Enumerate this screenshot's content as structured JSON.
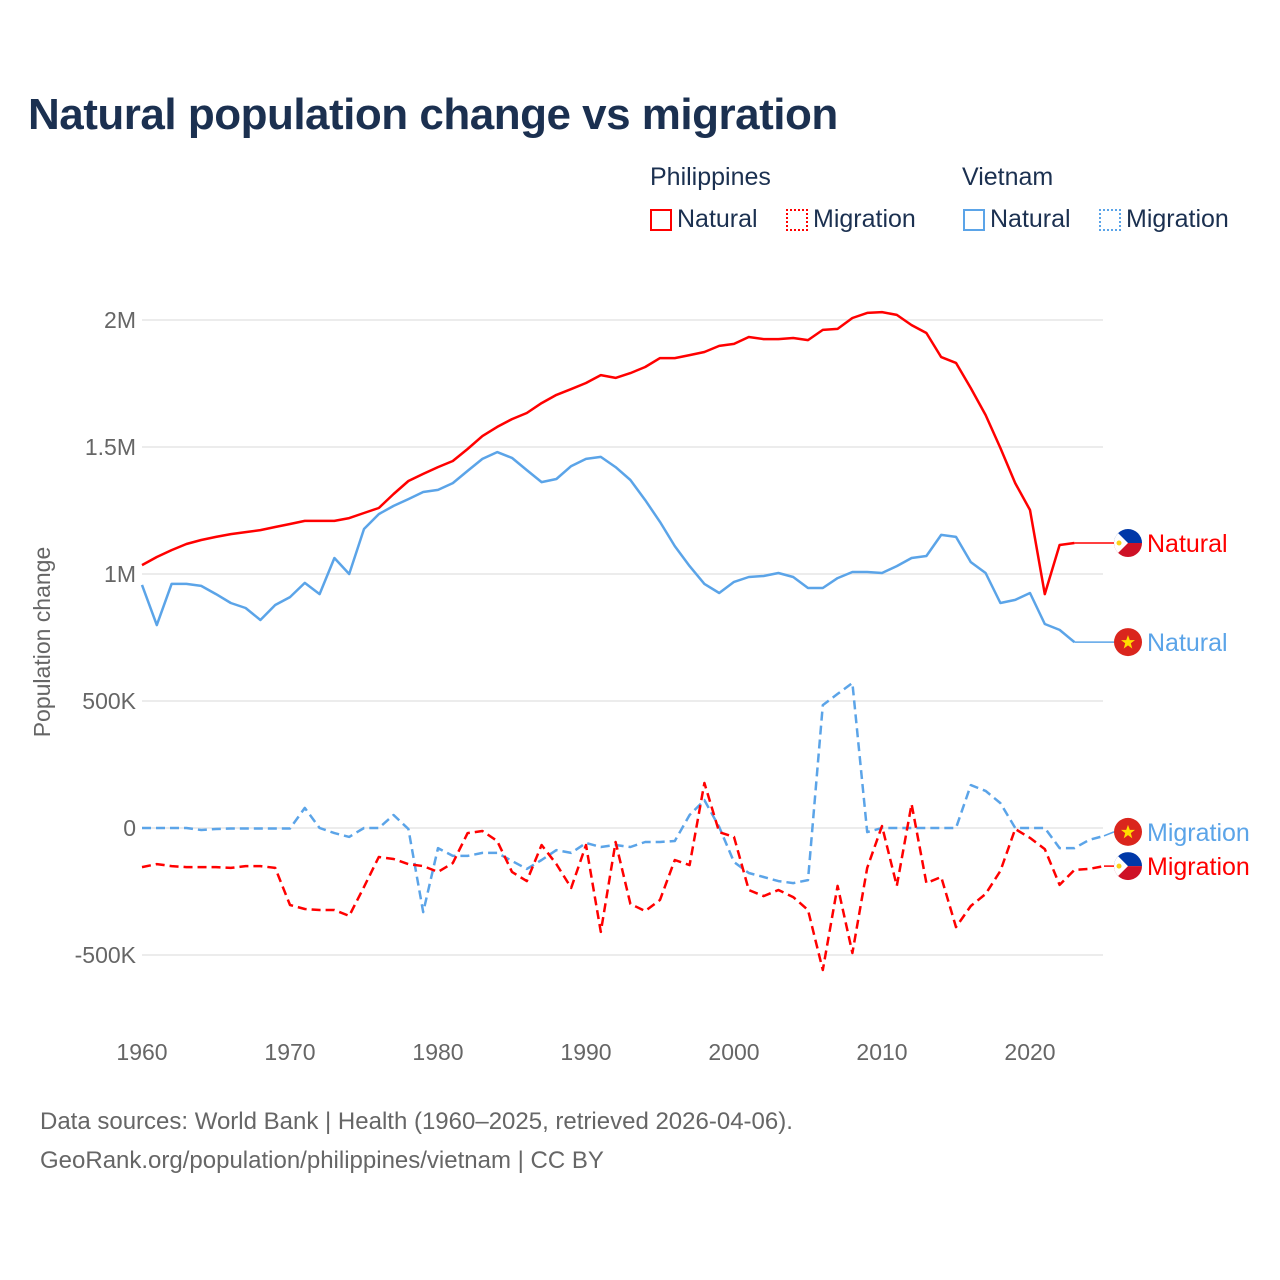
{
  "title": "Natural population change vs migration",
  "legend": {
    "groups": [
      {
        "name": "Philippines",
        "items": [
          {
            "label": "Natural",
            "style": "solid",
            "color": "#ff0000"
          },
          {
            "label": "Migration",
            "style": "dotted",
            "color": "#ff0000"
          }
        ]
      },
      {
        "name": "Vietnam",
        "items": [
          {
            "label": "Natural",
            "style": "solid",
            "color": "#5ba4e8"
          },
          {
            "label": "Migration",
            "style": "dotted",
            "color": "#5ba4e8"
          }
        ]
      }
    ]
  },
  "footer": {
    "line1": "Data sources: World Bank | Health (1960–2025, retrieved 2026-04-06).",
    "line2": "GeoRank.org/population/philippines/vietnam | CC BY"
  },
  "chart_data": {
    "type": "line",
    "title": "Natural population change vs migration",
    "xlabel": "",
    "ylabel": "Population change",
    "xlim": [
      1960,
      2025
    ],
    "ylim": [
      -650000,
      2100000
    ],
    "x_ticks": [
      1960,
      1970,
      1980,
      1990,
      2000,
      2010,
      2020
    ],
    "x_tick_labels": [
      "1960",
      "1970",
      "1980",
      "1990",
      "2000",
      "2010",
      "2020"
    ],
    "y_ticks": [
      -500000,
      0,
      500000,
      1000000,
      1500000,
      2000000
    ],
    "y_tick_labels": [
      "-500K",
      "0",
      "500K",
      "1M",
      "1.5M",
      "2M"
    ],
    "grid": true,
    "x_start": 1960,
    "series": [
      {
        "name": "Philippines Natural",
        "end_label": "Natural",
        "flag": "philippines-flag",
        "color": "#ff0000",
        "dash": false,
        "values": [
          1035000,
          1067000,
          1094000,
          1118000,
          1134000,
          1146000,
          1157000,
          1165000,
          1173000,
          1185000,
          1197000,
          1209000,
          1209000,
          1209000,
          1220000,
          1240000,
          1260000,
          1315000,
          1366000,
          1394000,
          1421000,
          1445000,
          1492000,
          1543000,
          1579000,
          1610000,
          1634000,
          1673000,
          1705000,
          1728000,
          1752000,
          1783000,
          1772000,
          1791000,
          1815000,
          1850000,
          1850000,
          1862000,
          1874000,
          1898000,
          1906000,
          1933000,
          1925000,
          1925000,
          1929000,
          1921000,
          1961000,
          1965000,
          2008000,
          2028000,
          2031000,
          2020000,
          1980000,
          1949000,
          1854000,
          1831000,
          1732000,
          1626000,
          1496000,
          1358000,
          1252000,
          921000,
          1114000,
          1122000
        ]
      },
      {
        "name": "Vietnam Natural",
        "end_label": "Natural",
        "flag": "vietnam-flag",
        "color": "#5ba4e8",
        "dash": false,
        "values": [
          957000,
          799000,
          961000,
          961000,
          953000,
          921000,
          886000,
          866000,
          819000,
          878000,
          909000,
          965000,
          921000,
          1063000,
          1000000,
          1177000,
          1236000,
          1268000,
          1295000,
          1323000,
          1331000,
          1358000,
          1406000,
          1453000,
          1480000,
          1457000,
          1409000,
          1362000,
          1374000,
          1425000,
          1453000,
          1461000,
          1421000,
          1370000,
          1291000,
          1205000,
          1110000,
          1031000,
          961000,
          925000,
          969000,
          988000,
          992000,
          1004000,
          988000,
          945000,
          945000,
          984000,
          1008000,
          1008000,
          1004000,
          1031000,
          1063000,
          1071000,
          1154000,
          1146000,
          1047000,
          1004000,
          886000,
          898000,
          925000,
          803000,
          780000,
          732000
        ]
      },
      {
        "name": "Vietnam Migration",
        "end_label": "Migration",
        "flag": "vietnam-flag",
        "color": "#5ba4e8",
        "dash": true,
        "values": [
          0,
          0,
          0,
          0,
          -8000,
          -4000,
          -2000,
          -2000,
          -2000,
          -2000,
          -2000,
          79000,
          0,
          -20000,
          -35000,
          0,
          0,
          51000,
          -4000,
          -331000,
          -79000,
          -110000,
          -110000,
          -98000,
          -98000,
          -130000,
          -161000,
          -126000,
          -87000,
          -98000,
          -59000,
          -75000,
          -67000,
          -75000,
          -55000,
          -55000,
          -51000,
          51000,
          110000,
          4000,
          -134000,
          -177000,
          -193000,
          -209000,
          -217000,
          -205000,
          484000,
          528000,
          571000,
          -16000,
          0,
          0,
          0,
          0,
          0,
          0,
          169000,
          146000,
          98000,
          0,
          0,
          0,
          -79000,
          -79000,
          -47000,
          -31000
        ]
      },
      {
        "name": "Philippines Migration",
        "end_label": "Migration",
        "flag": "philippines-flag",
        "color": "#ff0000",
        "dash": true,
        "values": [
          -154000,
          -142000,
          -150000,
          -154000,
          -154000,
          -154000,
          -157000,
          -150000,
          -150000,
          -157000,
          -303000,
          -319000,
          -323000,
          -323000,
          -346000,
          -232000,
          -114000,
          -122000,
          -142000,
          -150000,
          -173000,
          -138000,
          -20000,
          -12000,
          -51000,
          -173000,
          -209000,
          -67000,
          -142000,
          -236000,
          -67000,
          -409000,
          -55000,
          -299000,
          -327000,
          -283000,
          -126000,
          -146000,
          177000,
          -16000,
          -35000,
          -244000,
          -268000,
          -244000,
          -272000,
          -323000,
          -559000,
          -228000,
          -492000,
          -157000,
          8000,
          -228000,
          94000,
          -217000,
          -193000,
          -390000,
          -307000,
          -260000,
          -169000,
          -4000,
          -39000,
          -83000,
          -224000,
          -165000,
          -161000,
          -150000
        ]
      }
    ]
  }
}
